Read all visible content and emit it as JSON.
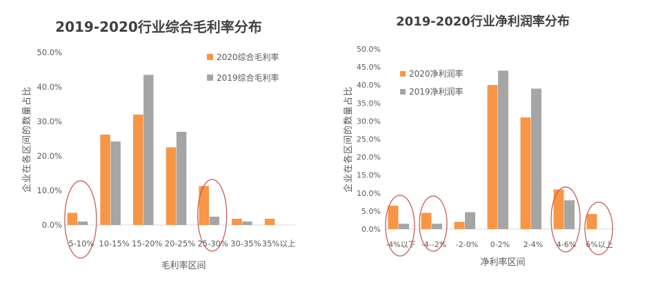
{
  "chart_data": [
    {
      "type": "bar",
      "title": "2019-2020行业综合毛利率分布",
      "xlabel": "毛利率区间",
      "ylabel": "企业在各区间的数量占比",
      "categories": [
        "5-10%",
        "10-15%",
        "15-20%",
        "20-25%",
        "25-30%",
        "30-35%",
        "35%以上"
      ],
      "series": [
        {
          "name": "2020综合毛利率",
          "values": [
            3.5,
            26.2,
            32.0,
            22.5,
            11.3,
            1.8,
            1.8
          ]
        },
        {
          "name": "2019综合毛利率",
          "values": [
            1.0,
            24.2,
            43.5,
            27.0,
            2.4,
            1.0,
            null
          ]
        }
      ],
      "ylim": [
        0,
        50
      ],
      "yticks": [
        "0.0%",
        "10.0%",
        "20.0%",
        "30.0%",
        "40.0%",
        "50.0%"
      ],
      "legend": "top-right",
      "grid": false,
      "colors": {
        "2020": "#F79646",
        "2019": "#A5A5A5",
        "circle": "#C0504D"
      },
      "highlighted_categories": [
        "5-10%",
        "25-30%"
      ]
    },
    {
      "type": "bar",
      "title": "2019-2020行业净利润率分布",
      "xlabel": "净利率区间",
      "ylabel": "企业在各区间的数量占比",
      "categories": [
        "-4%以下",
        "-4--2%",
        "-2-0%",
        "0-2%",
        "2-4%",
        "4-6%",
        "6%以上"
      ],
      "series": [
        {
          "name": "2020净利润率",
          "values": [
            6.5,
            4.5,
            2.0,
            40.0,
            31.0,
            11.0,
            4.2
          ]
        },
        {
          "name": "2019净利润率",
          "values": [
            1.5,
            1.5,
            4.7,
            44.0,
            39.0,
            8.0,
            null
          ]
        }
      ],
      "ylim": [
        0,
        50
      ],
      "yticks": [
        "0.0%",
        "5.0%",
        "10.0%",
        "15.0%",
        "20.0%",
        "25.0%",
        "30.0%",
        "35.0%",
        "40.0%",
        "45.0%",
        "50.0%"
      ],
      "legend": "top-left",
      "grid": false,
      "colors": {
        "2020": "#F79646",
        "2019": "#A5A5A5",
        "circle": "#C0504D"
      },
      "highlighted_categories": [
        "-4%以下",
        "-4--2%",
        "4-6%",
        "6%以上"
      ]
    }
  ]
}
